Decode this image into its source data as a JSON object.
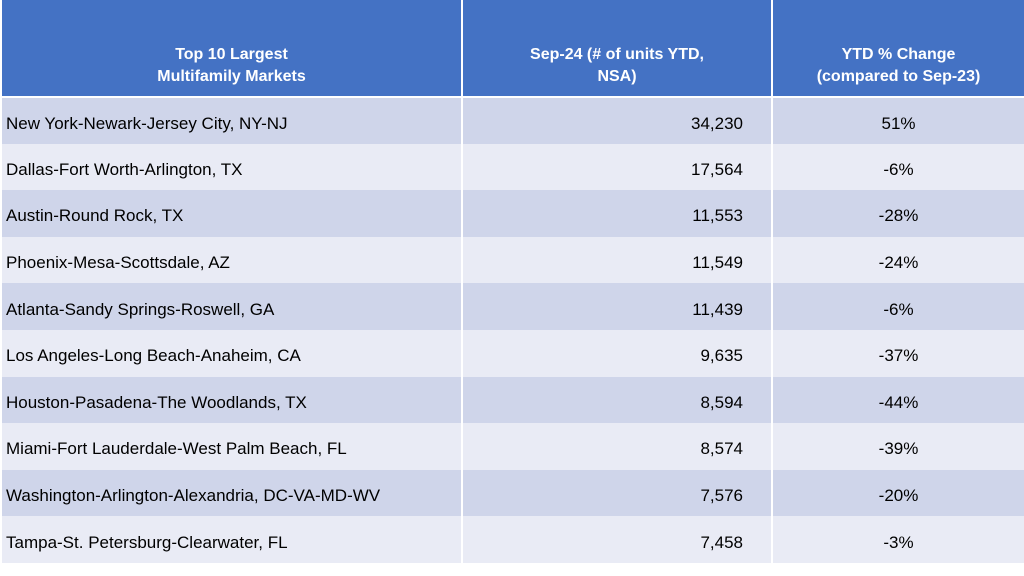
{
  "table": {
    "headers": [
      "Top 10 Largest Multifamily Markets",
      "Sep-24 (# of units YTD, NSA)",
      "YTD % Change (compared to Sep-23)"
    ],
    "rows": [
      [
        "New York-Newark-Jersey City, NY-NJ",
        "34,230",
        "51%"
      ],
      [
        "Dallas-Fort Worth-Arlington, TX",
        "17,564",
        "-6%"
      ],
      [
        "Austin-Round Rock, TX",
        "11,553",
        "-28%"
      ],
      [
        "Phoenix-Mesa-Scottsdale, AZ",
        "11,549",
        "-24%"
      ],
      [
        "Atlanta-Sandy Springs-Roswell, GA",
        "11,439",
        "-6%"
      ],
      [
        "Los Angeles-Long Beach-Anaheim, CA",
        "9,635",
        "-37%"
      ],
      [
        "Houston-Pasadena-The Woodlands, TX",
        "8,594",
        "-44%"
      ],
      [
        "Miami-Fort Lauderdale-West Palm Beach, FL",
        "8,574",
        "-39%"
      ],
      [
        "Washington-Arlington-Alexandria, DC-VA-MD-WV",
        "7,576",
        "-20%"
      ],
      [
        "Tampa-St. Petersburg-Clearwater, FL",
        "7,458",
        "-3%"
      ]
    ]
  }
}
